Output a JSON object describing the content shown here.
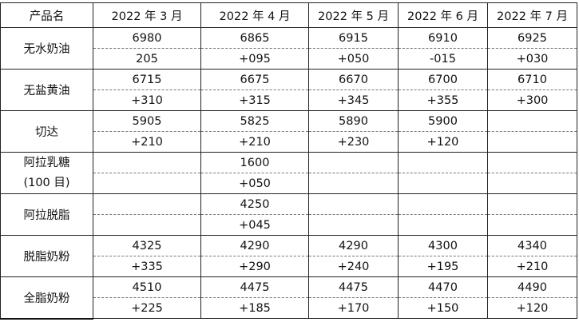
{
  "table": {
    "headers": [
      "产品名",
      "2022 年 3 月",
      "2022 年 4 月",
      "2022 年 5 月",
      "2022 年 6 月",
      "2022 年 7 月"
    ],
    "rows": [
      {
        "product": "无水奶油",
        "prices": [
          "6980",
          "6865",
          "6915",
          "6910",
          "6925"
        ],
        "changes": [
          "205",
          "+095",
          "+050",
          "-015",
          "+030"
        ]
      },
      {
        "product": "无盐黄油",
        "prices": [
          "6715",
          "6675",
          "6670",
          "6700",
          "6710"
        ],
        "changes": [
          "+310",
          "+315",
          "+345",
          "+355",
          "+300"
        ]
      },
      {
        "product": "切达",
        "prices": [
          "5905",
          "5825",
          "5890",
          "5900",
          ""
        ],
        "changes": [
          "+210",
          "+210",
          "+230",
          "+120",
          ""
        ]
      },
      {
        "product_line1": "阿拉乳糖",
        "product_line2": "(100 目)",
        "prices": [
          "",
          "1600",
          "",
          "",
          ""
        ],
        "changes": [
          "",
          "+050",
          "",
          "",
          ""
        ]
      },
      {
        "product": "阿拉脱脂",
        "prices": [
          "",
          "4250",
          "",
          "",
          ""
        ],
        "changes": [
          "",
          "+045",
          "",
          "",
          ""
        ]
      },
      {
        "product": "脱脂奶粉",
        "prices": [
          "4325",
          "4290",
          "4290",
          "4300",
          "4340"
        ],
        "changes": [
          "+335",
          "+290",
          "+240",
          "+195",
          "+210"
        ]
      },
      {
        "product": "全脂奶粉",
        "prices": [
          "4510",
          "4475",
          "4475",
          "4470",
          "4490"
        ],
        "changes": [
          "+225",
          "+185",
          "+170",
          "+150",
          "+120"
        ]
      }
    ]
  }
}
